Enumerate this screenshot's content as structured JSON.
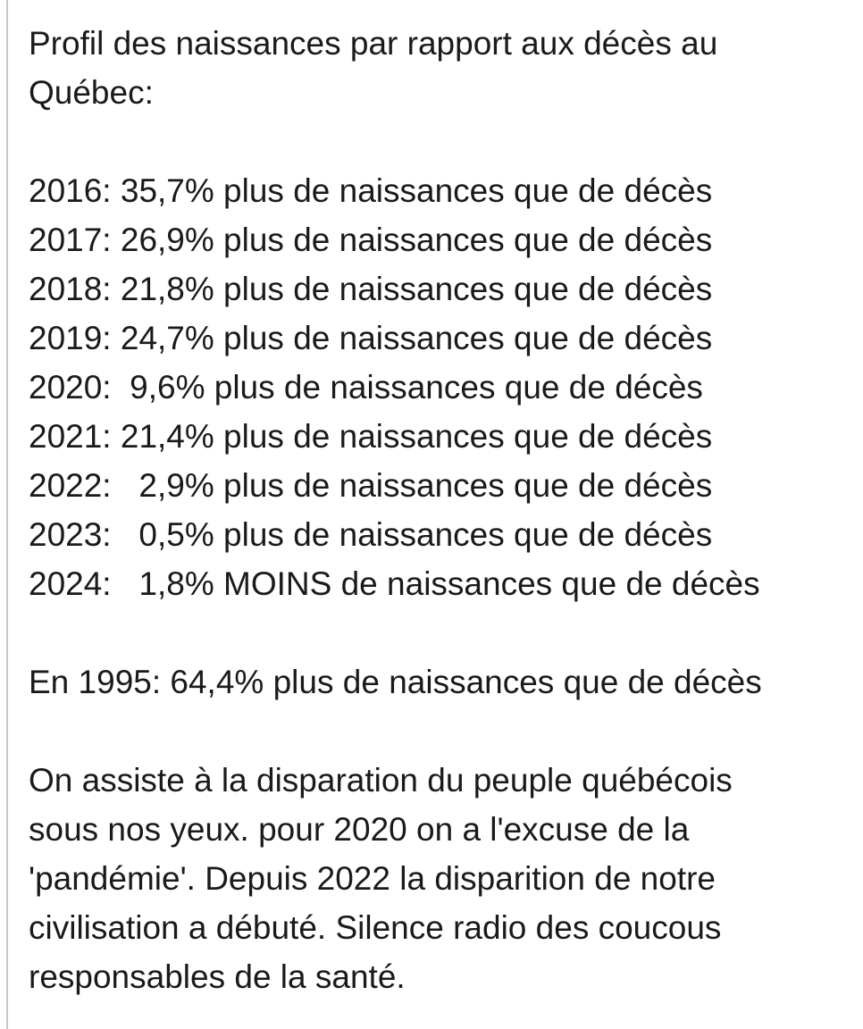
{
  "post": {
    "title_lines": [
      "Profil des naissances par rapport aux décès au",
      "Québec:"
    ],
    "rows": [
      "2016: 35,7% plus de naissances que de décès",
      "2017: 26,9% plus de naissances que de décès",
      "2018: 21,8% plus de naissances que de décès",
      "2019: 24,7% plus de naissances que de décès",
      "2020:  9,6% plus de naissances que de décès",
      "2021: 21,4% plus de naissances que de décès",
      "2022:   2,9% plus de naissances que de décès",
      "2023:   0,5% plus de naissances que de décès",
      "2024:   1,8% MOINS de naissances que de décès"
    ],
    "comparison": "En 1995: 64,4% plus de naissances que de décès",
    "comment_lines": [
      "On assiste à la disparation du peuple québécois",
      "sous nos yeux. pour 2020 on a l'excuse de la",
      "'pandémie'. Depuis 2022 la disparition de notre",
      "civilisation a débuté. Silence radio des coucous",
      "responsables de la santé."
    ]
  }
}
